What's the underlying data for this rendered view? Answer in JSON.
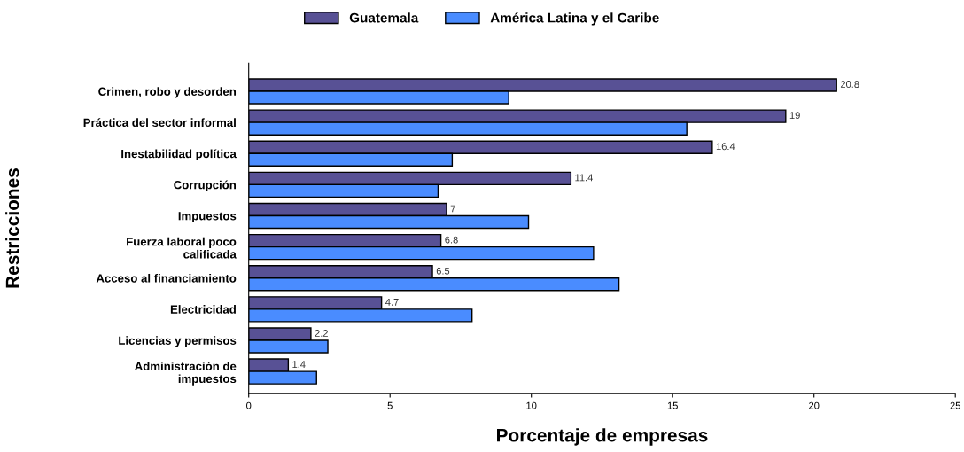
{
  "chart_data": {
    "type": "bar",
    "orientation": "horizontal",
    "xlabel": "Porcentaje de empresas",
    "ylabel": "Restricciones",
    "categories": [
      "Crimen, robo y desorden",
      "Práctica del sector informal",
      "Inestabilidad política",
      "Corrupción",
      "Impuestos",
      "Fuerza laboral poco\ncalificada",
      "Acceso al financiamiento",
      "Electricidad",
      "Licencias y permisos",
      "Administración de\nimpuestos"
    ],
    "series": [
      {
        "name": "Guatemala",
        "color": "#585195",
        "values": [
          20.8,
          19,
          16.4,
          11.4,
          7,
          6.8,
          6.5,
          4.7,
          2.2,
          1.4
        ],
        "value_labels": [
          "20.8",
          "19",
          "16.4",
          "11.4",
          "7",
          "6.8",
          "6.5",
          "4.7",
          "2.2",
          "1.4"
        ]
      },
      {
        "name": "América Latina y el Caribe",
        "color": "#4a8cff",
        "values": [
          9.2,
          15.5,
          7.2,
          6.7,
          9.9,
          12.2,
          13.1,
          7.9,
          2.8,
          2.4
        ]
      }
    ],
    "xlim": [
      0,
      25
    ],
    "xticks": [
      0,
      5,
      10,
      15,
      20,
      25
    ],
    "legend": "top",
    "grid": false
  }
}
